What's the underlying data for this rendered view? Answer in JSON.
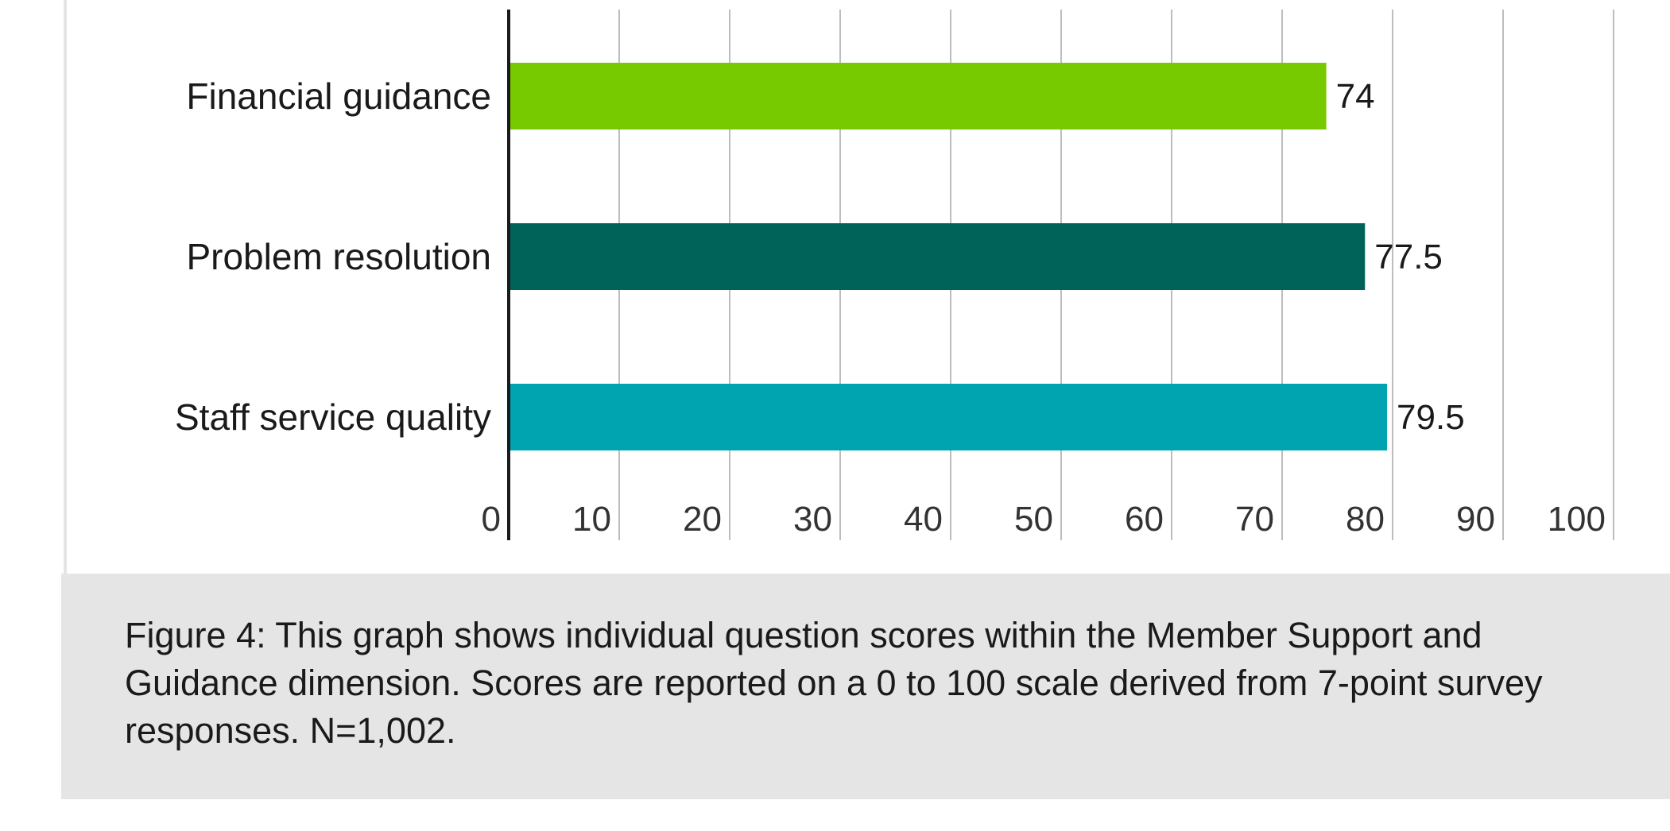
{
  "chart_data": {
    "type": "bar",
    "orientation": "horizontal",
    "categories": [
      "Financial guidance",
      "Problem resolution",
      "Staff service quality"
    ],
    "values": [
      74,
      77.5,
      79.5
    ],
    "data_labels": [
      "74",
      "77.5",
      "79.5"
    ],
    "bar_colors": [
      "#77c900",
      "#00635a",
      "#00a3b0"
    ],
    "xlim": [
      0,
      100
    ],
    "x_ticks": [
      0,
      10,
      20,
      30,
      40,
      50,
      60,
      70,
      80,
      90,
      100
    ],
    "x_tick_labels": [
      "0",
      "10",
      "20",
      "30",
      "40",
      "50",
      "60",
      "70",
      "80",
      "90",
      "100"
    ],
    "grid": true,
    "legend": "none"
  },
  "caption": {
    "text": "Figure 4: This graph shows individual question scores within the Member Support and Guidance dimension. Scores are reported on a 0 to 100 scale derived from 7-point survey responses. N=1,002."
  }
}
